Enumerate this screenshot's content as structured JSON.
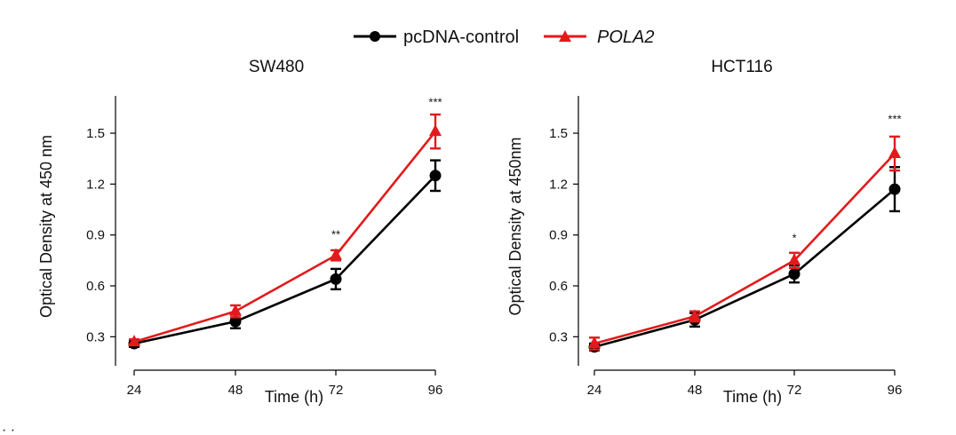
{
  "legend": {
    "items": [
      {
        "label": "pcDNA-control",
        "color": "#000000",
        "marker": "circle",
        "italic": false
      },
      {
        "label": "POLA2",
        "color": "#e31a1c",
        "marker": "triangle",
        "italic": true
      }
    ]
  },
  "footer_mark": "· ·",
  "chart_data": [
    {
      "type": "line",
      "title": "SW480",
      "xlabel": "Time (h)",
      "ylabel": "Optical Density at 450 nm",
      "x": [
        24,
        48,
        72,
        96
      ],
      "x_tick_labels": [
        "24",
        "48",
        "72",
        "96"
      ],
      "ylim": [
        0.15,
        1.72
      ],
      "y_ticks": [
        0.3,
        0.6,
        0.9,
        1.2,
        1.5
      ],
      "y_tick_labels": [
        "0.3",
        "0.6",
        "0.9",
        "1.2",
        "1.5"
      ],
      "grid": false,
      "series": [
        {
          "name": "pcDNA-control",
          "color": "#000000",
          "marker": "circle",
          "values": [
            0.26,
            0.39,
            0.64,
            1.25
          ],
          "errors": [
            0.02,
            0.04,
            0.06,
            0.09
          ]
        },
        {
          "name": "POLA2",
          "color": "#e31a1c",
          "marker": "triangle",
          "values": [
            0.27,
            0.45,
            0.78,
            1.51
          ],
          "errors": [
            0.015,
            0.035,
            0.03,
            0.1
          ]
        }
      ],
      "annotations": [
        {
          "x": 72,
          "y": 0.88,
          "text": "**"
        },
        {
          "x": 96,
          "y": 1.66,
          "text": "***"
        }
      ]
    },
    {
      "type": "line",
      "title": "HCT116",
      "xlabel": "Time (h)",
      "ylabel": "Optical Density at 450nm",
      "x": [
        24,
        48,
        72,
        96
      ],
      "x_tick_labels": [
        "24",
        "48",
        "72",
        "96"
      ],
      "ylim": [
        0.15,
        1.72
      ],
      "y_ticks": [
        0.3,
        0.6,
        0.9,
        1.2,
        1.5
      ],
      "y_tick_labels": [
        "0.3",
        "0.6",
        "0.9",
        "1.2",
        "1.5"
      ],
      "grid": false,
      "series": [
        {
          "name": "pcDNA-control",
          "color": "#000000",
          "marker": "circle",
          "values": [
            0.24,
            0.4,
            0.67,
            1.17
          ],
          "errors": [
            0.02,
            0.04,
            0.05,
            0.13
          ]
        },
        {
          "name": "POLA2",
          "color": "#e31a1c",
          "marker": "triangle",
          "values": [
            0.26,
            0.42,
            0.75,
            1.38
          ],
          "errors": [
            0.035,
            0.03,
            0.045,
            0.1
          ]
        }
      ],
      "annotations": [
        {
          "x": 72,
          "y": 0.86,
          "text": "*"
        },
        {
          "x": 96,
          "y": 1.56,
          "text": "***"
        }
      ]
    }
  ]
}
